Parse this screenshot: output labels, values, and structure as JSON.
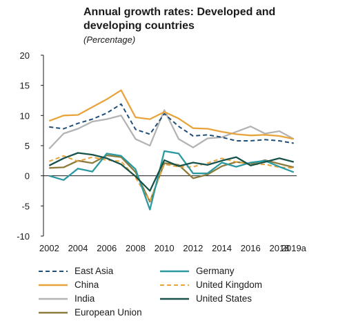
{
  "chart_data": {
    "type": "line",
    "title": "Annual growth rates: Developed and developing countries",
    "subtitle": "(Percentage)",
    "x": [
      "2002",
      "2003",
      "2004",
      "2005",
      "2006",
      "2007",
      "2008",
      "2009",
      "2010",
      "2011",
      "2012",
      "2013",
      "2014",
      "2015",
      "2016",
      "2017",
      "2018",
      "2019a"
    ],
    "xtick_labels": [
      "2002",
      "2004",
      "2006",
      "2008",
      "2010",
      "2012",
      "2014",
      "2016",
      "2018",
      "2019a"
    ],
    "ylim": [
      -10,
      20
    ],
    "yticks": [
      -10,
      -5,
      0,
      5,
      10,
      15,
      20
    ],
    "grid": false,
    "legend_position": "bottom",
    "series": [
      {
        "name": "East Asia",
        "color": "#1f4e79",
        "dash": "dashed",
        "values": [
          8.1,
          7.8,
          8.7,
          9.4,
          10.4,
          11.9,
          7.7,
          6.9,
          10.3,
          8.2,
          6.6,
          6.8,
          6.4,
          5.8,
          5.8,
          6.0,
          5.8,
          5.4
        ]
      },
      {
        "name": "China",
        "color": "#e8a33a",
        "dash": "solid",
        "values": [
          9.1,
          10.0,
          10.1,
          11.4,
          12.7,
          14.2,
          9.7,
          9.4,
          10.6,
          9.5,
          7.9,
          7.8,
          7.3,
          6.9,
          6.7,
          6.8,
          6.6,
          6.1
        ]
      },
      {
        "name": "India",
        "color": "#b3b3b3",
        "dash": "solid",
        "values": [
          4.5,
          7.0,
          7.8,
          9.0,
          9.4,
          10.0,
          6.1,
          5.0,
          10.9,
          6.1,
          4.7,
          6.2,
          6.4,
          7.3,
          8.2,
          7.0,
          7.4,
          6.1
        ]
      },
      {
        "name": "European Union",
        "color": "#8c7a3b",
        "dash": "solid",
        "values": [
          1.3,
          1.4,
          2.5,
          2.1,
          3.4,
          3.1,
          0.6,
          -4.3,
          2.1,
          1.8,
          -0.4,
          0.2,
          1.6,
          2.3,
          2.0,
          2.6,
          2.0,
          1.4
        ]
      },
      {
        "name": "Germany",
        "color": "#2a9aa0",
        "dash": "solid",
        "values": [
          0.0,
          -0.7,
          1.2,
          0.7,
          3.7,
          3.3,
          1.1,
          -5.6,
          4.1,
          3.7,
          0.4,
          0.4,
          2.2,
          1.5,
          2.2,
          2.5,
          1.5,
          0.6
        ]
      },
      {
        "name": "United Kingdom",
        "color": "#e8a33a",
        "dash": "dashed",
        "values": [
          2.4,
          3.3,
          2.4,
          3.1,
          2.6,
          2.4,
          -0.3,
          -4.2,
          1.9,
          1.5,
          1.5,
          2.1,
          2.9,
          2.3,
          1.9,
          1.9,
          1.4,
          1.3
        ]
      },
      {
        "name": "United States",
        "color": "#17524a",
        "dash": "solid",
        "values": [
          1.7,
          2.9,
          3.8,
          3.5,
          2.9,
          1.9,
          -0.1,
          -2.5,
          2.6,
          1.6,
          2.2,
          1.8,
          2.5,
          3.1,
          1.7,
          2.3,
          2.9,
          2.3
        ]
      }
    ]
  }
}
